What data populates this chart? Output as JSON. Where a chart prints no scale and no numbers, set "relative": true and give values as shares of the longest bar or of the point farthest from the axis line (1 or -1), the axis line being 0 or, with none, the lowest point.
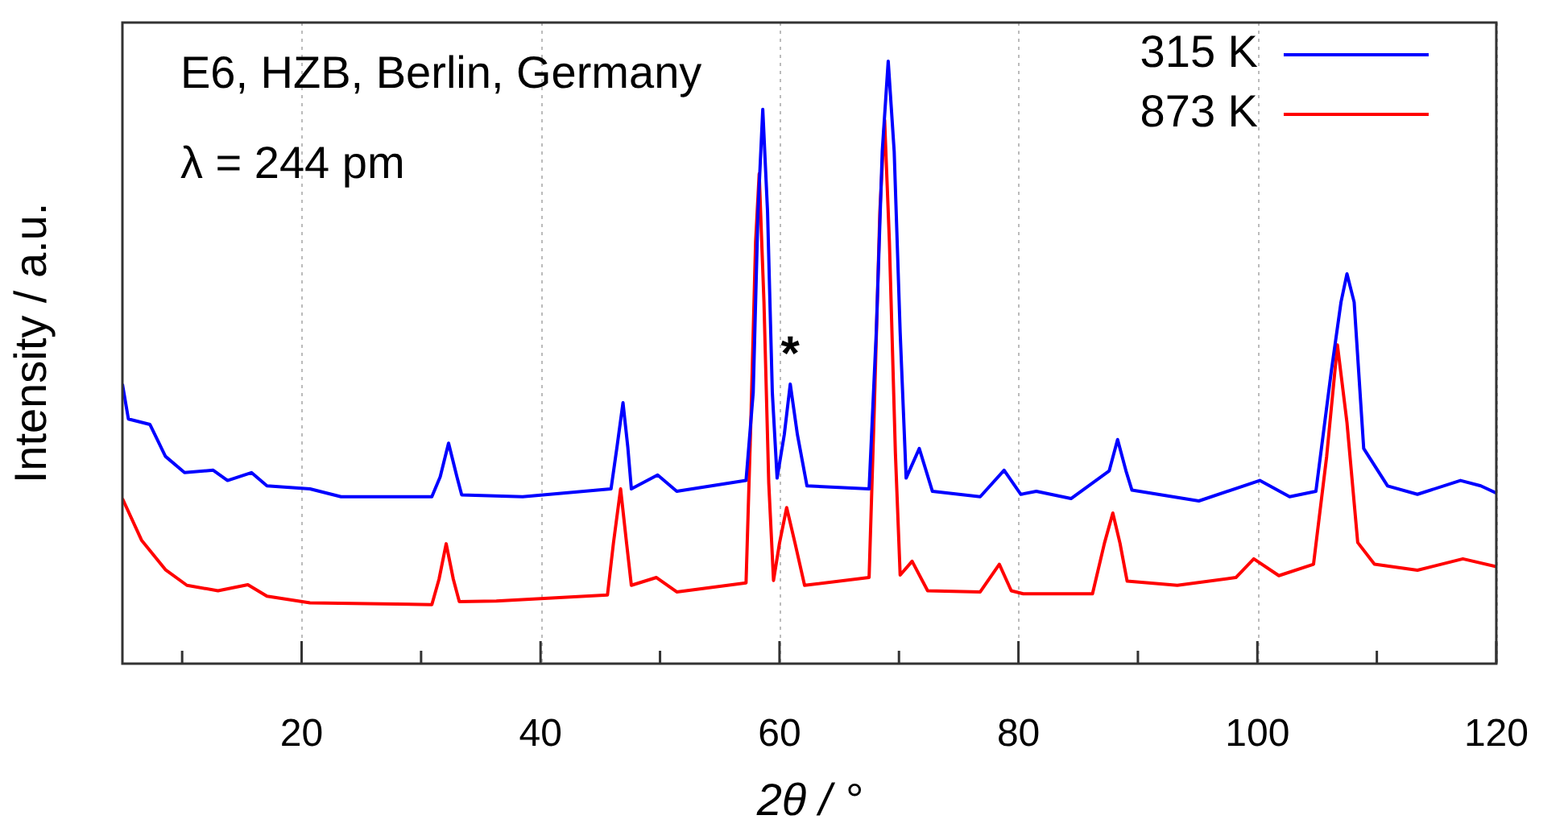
{
  "chart_data": {
    "type": "line",
    "relative": true,
    "xlabel": "2θ / °",
    "ylabel": "Intensity / a.u.",
    "xlim": [
      5,
      120
    ],
    "xticks": [
      {
        "value": 10,
        "label": null
      },
      20,
      {
        "value": 30,
        "label": null
      },
      40,
      {
        "value": 50,
        "label": null
      },
      60,
      {
        "value": 70,
        "label": null
      },
      80,
      {
        "value": 90,
        "label": null
      },
      100,
      {
        "value": 110,
        "label": null
      },
      120
    ],
    "grid": "x",
    "legend": "top right",
    "marker": "none",
    "line_style": "solid",
    "annotations": [
      "E6, HZB, Berlin, Germany",
      "λ = 244 pm",
      {
        "text": "*",
        "x": 60.9,
        "y": 0.464
      }
    ],
    "series": [
      {
        "name": "315 K",
        "color": "#0000ff",
        "x": [
          5,
          5.5,
          7.3,
          8.6,
          10.2,
          12.6,
          13.8,
          15.8,
          17.1,
          20.7,
          23.3,
          30.9,
          31.6,
          32.3,
          33.0,
          33.4,
          38.5,
          45.9,
          46.4,
          46.9,
          47.3,
          47.6,
          49.8,
          51.4,
          57.2,
          57.8,
          58.2,
          58.6,
          59.0,
          59.4,
          59.8,
          60.4,
          60.9,
          61.5,
          62.3,
          67.5,
          68.1,
          68.6,
          69.1,
          69.6,
          70.1,
          70.6,
          71.7,
          72.8,
          76.8,
          78.8,
          80.2,
          81.5,
          84.4,
          87.6,
          88.3,
          89.0,
          89.5,
          95.1,
          100.2,
          102.7,
          104.9,
          106.2,
          107.0,
          107.5,
          108.1,
          108.9,
          110.9,
          113.4,
          117,
          118.7,
          120
        ],
        "values": [
          0.464,
          0.406,
          0.397,
          0.344,
          0.317,
          0.321,
          0.304,
          0.317,
          0.295,
          0.29,
          0.277,
          0.277,
          0.31,
          0.366,
          0.31,
          0.28,
          0.277,
          0.29,
          0.36,
          0.433,
          0.36,
          0.29,
          0.313,
          0.286,
          0.304,
          0.45,
          0.75,
          0.92,
          0.75,
          0.45,
          0.308,
          0.38,
          0.464,
          0.38,
          0.295,
          0.29,
          0.55,
          0.85,
          1.0,
          0.85,
          0.55,
          0.308,
          0.357,
          0.286,
          0.277,
          0.321,
          0.281,
          0.286,
          0.274,
          0.32,
          0.372,
          0.32,
          0.288,
          0.27,
          0.304,
          0.277,
          0.286,
          0.487,
          0.6,
          0.647,
          0.6,
          0.357,
          0.295,
          0.281,
          0.304,
          0.295,
          0.283
        ]
      },
      {
        "name": "873 K",
        "color": "#ff0000",
        "x": [
          5,
          6.6,
          8.6,
          10.4,
          13,
          15.5,
          17.1,
          20.7,
          30.9,
          31.5,
          32.1,
          32.7,
          33.2,
          36.3,
          45.6,
          46.1,
          46.7,
          47.2,
          47.6,
          49.7,
          51.4,
          57.2,
          57.6,
          58.0,
          58.3,
          58.7,
          59.1,
          59.5,
          60.0,
          60.6,
          61.3,
          62.1,
          67.5,
          67.9,
          68.4,
          68.8,
          69.2,
          69.7,
          70.1,
          71.1,
          72.4,
          76.8,
          78.4,
          79.4,
          80.4,
          86.2,
          87.2,
          87.9,
          88.5,
          89.1,
          93.3,
          98.2,
          99.7,
          101.8,
          104.7,
          105.8,
          106.7,
          107.5,
          108.4,
          109.8,
          113.4,
          117.2,
          120
        ],
        "values": [
          0.274,
          0.205,
          0.156,
          0.13,
          0.121,
          0.131,
          0.112,
          0.101,
          0.098,
          0.14,
          0.199,
          0.14,
          0.103,
          0.104,
          0.114,
          0.2,
          0.29,
          0.2,
          0.13,
          0.143,
          0.119,
          0.134,
          0.4,
          0.7,
          0.813,
          0.6,
          0.3,
          0.138,
          0.2,
          0.259,
          0.2,
          0.13,
          0.143,
          0.4,
          0.75,
          0.902,
          0.7,
          0.35,
          0.147,
          0.17,
          0.121,
          0.119,
          0.165,
          0.121,
          0.116,
          0.116,
          0.2,
          0.25,
          0.2,
          0.137,
          0.13,
          0.143,
          0.174,
          0.146,
          0.165,
          0.344,
          0.529,
          0.4,
          0.201,
          0.165,
          0.155,
          0.174,
          0.161
        ]
      }
    ]
  }
}
